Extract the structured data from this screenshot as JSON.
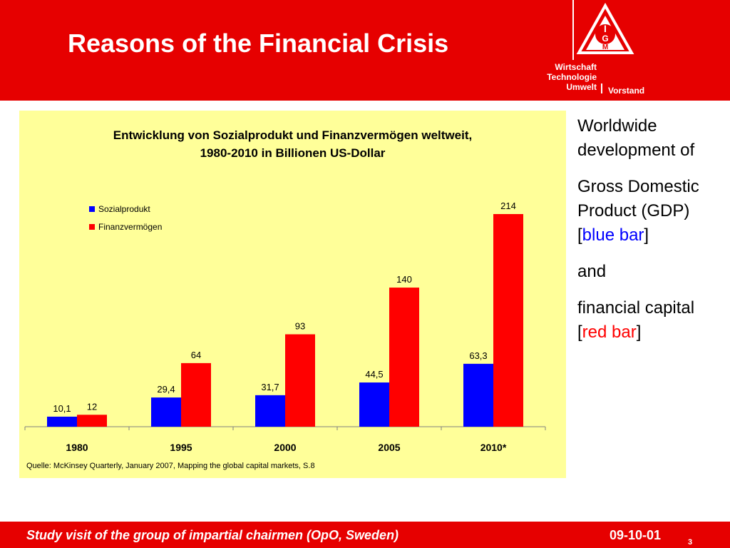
{
  "slide": {
    "title": "Reasons of the Financial Crisis"
  },
  "logo": {
    "text": "IG M",
    "icon": "ig-metall-logo-icon"
  },
  "department": {
    "lines": [
      "Wirtschaft",
      "Technologie",
      "Umwelt"
    ],
    "board": "Vorstand"
  },
  "colors": {
    "header": "#e60000",
    "panel": "#ffff99",
    "gdp": "#0000ff",
    "capital": "#ff0000"
  },
  "chart_data": {
    "type": "bar",
    "title_line1": "Entwicklung von Sozialprodukt und Finanzvermögen weltweit,",
    "title_line2": "1980-2010 in Billionen US-Dollar",
    "categories": [
      "1980",
      "1995",
      "2000",
      "2005",
      "2010*"
    ],
    "series": [
      {
        "name": "Sozialprodukt",
        "color": "#0000ff",
        "values": [
          10.1,
          29.4,
          31.7,
          44.5,
          63.3
        ],
        "labels": [
          "10,1",
          "29,4",
          "31,7",
          "44,5",
          "63,3"
        ]
      },
      {
        "name": "Finanzvermögen",
        "color": "#ff0000",
        "values": [
          12,
          64,
          93,
          140,
          214
        ],
        "labels": [
          "12",
          "64",
          "93",
          "140",
          "214"
        ]
      }
    ],
    "ylim": [
      0,
      214
    ],
    "legend_position": "top-left",
    "grid": false,
    "source": "Quelle: McKinsey Quarterly, January 2007, Mapping the global capital markets, S.8"
  },
  "side": {
    "p1": "Worldwide development of",
    "p2_prefix": "Gross Domestic Product (GDP) [",
    "p2_highlight": "blue bar",
    "p2_suffix": "]",
    "p3": "and",
    "p4_prefix": "financial capital [",
    "p4_highlight": "red bar",
    "p4_suffix": "]"
  },
  "footer": {
    "text": "Study visit of the group of impartial chairmen (OpO, Sweden)",
    "date": "09-10-01",
    "page": "3"
  }
}
